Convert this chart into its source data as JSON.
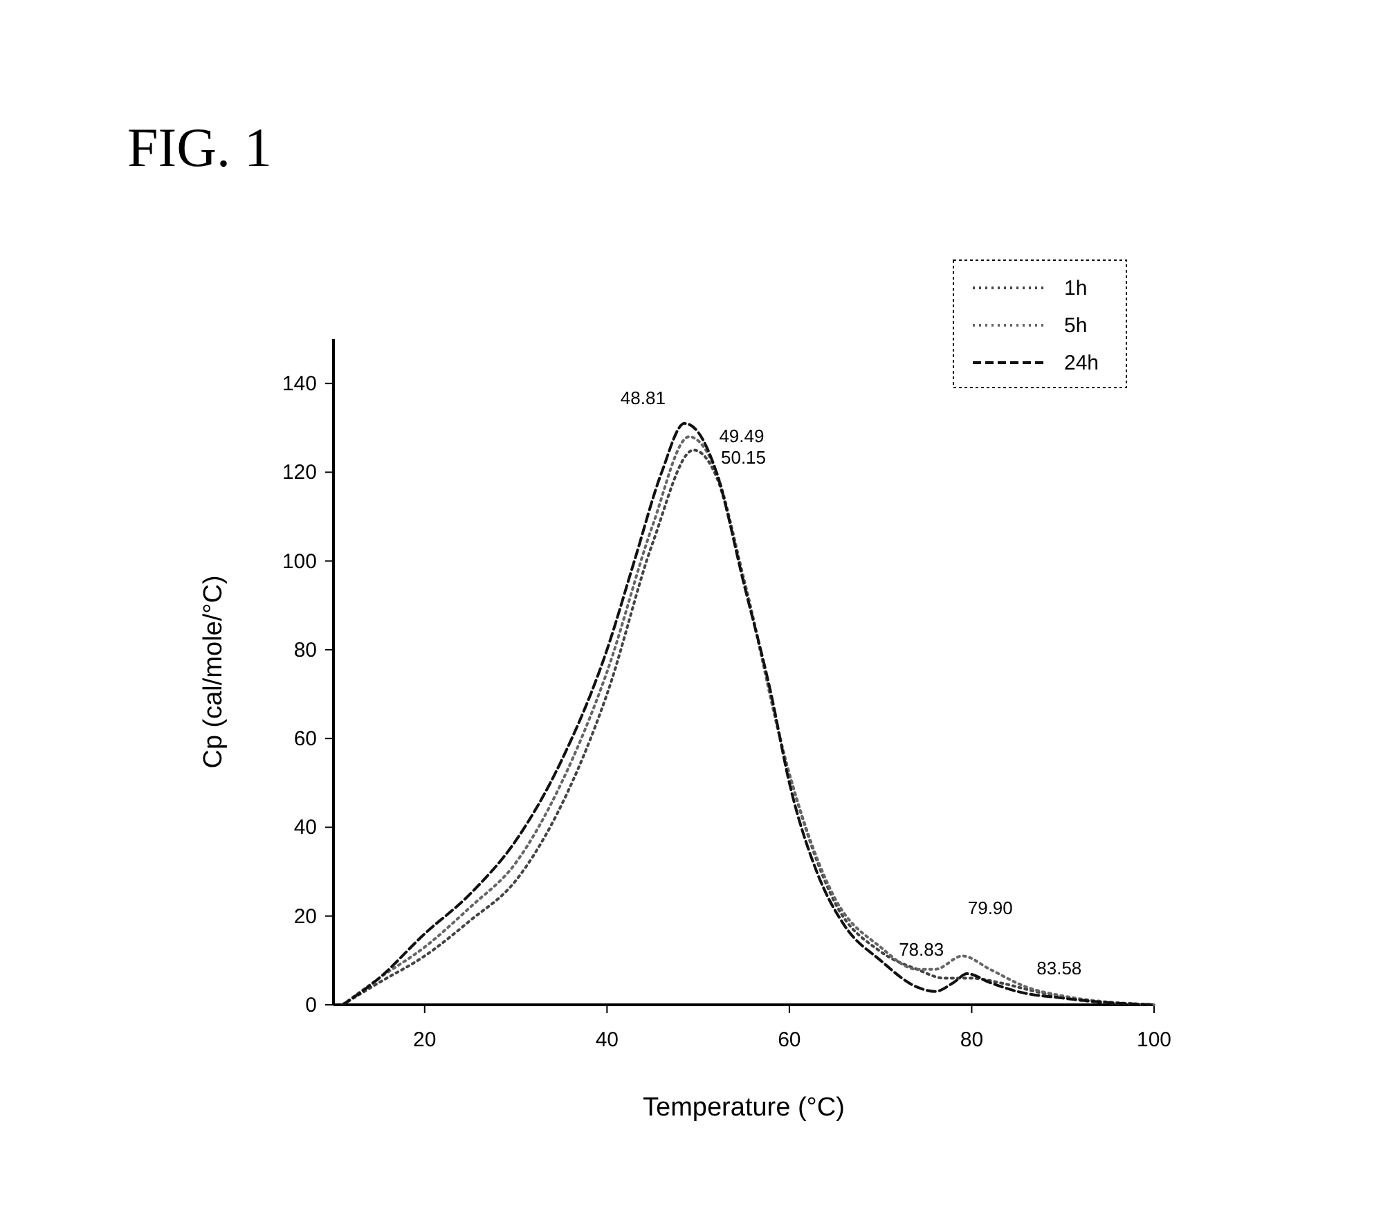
{
  "chart_data": {
    "type": "line",
    "title": "FIG. 1",
    "xlabel": "Temperature (°C)",
    "ylabel": "Cp (cal/mole/°C)",
    "xlim": [
      10,
      100
    ],
    "xticks": [
      20,
      40,
      60,
      80,
      100
    ],
    "ylim": [
      0,
      150
    ],
    "yticks": [
      0,
      20,
      40,
      60,
      80,
      100,
      120,
      140
    ],
    "grid": false,
    "legend": "top right",
    "marker": "none",
    "series": [
      {
        "name": "1h",
        "color": "#444444",
        "line_style": "dotted",
        "x": [
          11,
          15,
          20,
          25,
          30,
          35,
          40,
          45,
          49.5,
          52,
          55,
          60,
          65,
          70,
          74,
          77,
          80,
          83,
          87,
          92,
          100
        ],
        "values": [
          0,
          5,
          11,
          19,
          28,
          45,
          70,
          104,
          125,
          119,
          96,
          52,
          23,
          12,
          8,
          6,
          6,
          5,
          3,
          1,
          0
        ]
      },
      {
        "name": "5h",
        "color": "#666666",
        "line_style": "dotted",
        "x": [
          11,
          15,
          20,
          25,
          30,
          35,
          40,
          45,
          49,
          52,
          55,
          60,
          65,
          70,
          74,
          76,
          79,
          82,
          86,
          90,
          100
        ],
        "values": [
          0,
          6,
          13,
          22,
          32,
          50,
          75,
          108,
          128,
          120,
          96,
          52,
          24,
          13,
          8,
          8,
          11,
          8,
          4,
          2,
          0
        ]
      },
      {
        "name": "24h",
        "color": "#111111",
        "line_style": "dashed",
        "x": [
          11,
          15,
          20,
          25,
          30,
          35,
          40,
          43,
          46,
          48.5,
          50,
          52,
          55,
          58,
          60,
          63,
          66,
          70,
          74,
          76,
          78,
          79.5,
          82,
          85,
          90,
          95,
          100
        ],
        "values": [
          0,
          6,
          16,
          25,
          37,
          55,
          80,
          100,
          120,
          131,
          129,
          120,
          95,
          70,
          50,
          30,
          18,
          10,
          4,
          3,
          5,
          7,
          5,
          3,
          1.5,
          0.5,
          0
        ]
      }
    ],
    "annotations": [
      {
        "text": "48.81",
        "x": 48.5,
        "y": 131
      },
      {
        "text": "49.49",
        "x": 49,
        "y": 128
      },
      {
        "text": "50.15",
        "x": 49.5,
        "y": 125
      },
      {
        "text": "78.83",
        "x": 76,
        "y": 8
      },
      {
        "text": "79.90",
        "x": 79,
        "y": 11
      },
      {
        "text": "83.58",
        "x": 82,
        "y": 5
      }
    ]
  }
}
